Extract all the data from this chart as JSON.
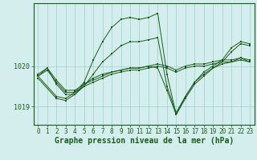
{
  "bg_color": "#d4eeed",
  "line_color": "#1a5c1a",
  "grid_color": "#9fcfcf",
  "xlabel": "Graphe pression niveau de la mer (hPa)",
  "xlabel_fontsize": 7.0,
  "tick_fontsize": 5.5,
  "ytick_fontsize": 6.0,
  "ylim": [
    1018.55,
    1021.55
  ],
  "xlim": [
    -0.5,
    23.5
  ],
  "yticks": [
    1019,
    1020
  ],
  "xticks": [
    0,
    1,
    2,
    3,
    4,
    5,
    6,
    7,
    8,
    9,
    10,
    11,
    12,
    13,
    14,
    15,
    16,
    17,
    18,
    19,
    20,
    21,
    22,
    23
  ],
  "series": [
    {
      "x": [
        0,
        1,
        2,
        3,
        4,
        5,
        6,
        7,
        8,
        9,
        10,
        11,
        12,
        13,
        14,
        15,
        16,
        17,
        18,
        19,
        20,
        21,
        22,
        23
      ],
      "y": [
        1019.75,
        1019.9,
        1019.6,
        1019.35,
        1019.35,
        1019.5,
        1019.6,
        1019.7,
        1019.8,
        1019.85,
        1019.9,
        1019.9,
        1019.95,
        1020.0,
        1019.95,
        1019.85,
        1019.95,
        1020.0,
        1020.0,
        1020.05,
        1020.1,
        1020.1,
        1020.15,
        1020.1
      ]
    },
    {
      "x": [
        0,
        1,
        2,
        3,
        4,
        5,
        6,
        7,
        8,
        9,
        10,
        11,
        12,
        13,
        14,
        15,
        16,
        17,
        18,
        19,
        20,
        21,
        22,
        23
      ],
      "y": [
        1019.8,
        1019.95,
        1019.65,
        1019.4,
        1019.4,
        1019.55,
        1019.65,
        1019.75,
        1019.85,
        1019.9,
        1019.95,
        1019.95,
        1020.0,
        1020.05,
        1020.0,
        1019.9,
        1020.0,
        1020.05,
        1020.05,
        1020.1,
        1020.15,
        1020.15,
        1020.2,
        1020.15
      ]
    },
    {
      "x": [
        0,
        1,
        2,
        3,
        4,
        5,
        6,
        7,
        8,
        9,
        10,
        11,
        12,
        13,
        14,
        15,
        16,
        17,
        18,
        19,
        20,
        21,
        22,
        23
      ],
      "y": [
        1019.75,
        1019.95,
        1019.55,
        1019.3,
        1019.3,
        1019.55,
        1019.7,
        1019.8,
        1019.85,
        1019.9,
        1019.95,
        1019.95,
        1020.0,
        1019.95,
        1019.4,
        1018.8,
        1019.2,
        1019.55,
        1019.75,
        1019.95,
        1020.05,
        1020.1,
        1020.2,
        1020.1
      ]
    },
    {
      "x": [
        0,
        2,
        3,
        4,
        5,
        6,
        7,
        8,
        9,
        10,
        11,
        12,
        13,
        14,
        15,
        16,
        17,
        18,
        19,
        20,
        21,
        22,
        23
      ],
      "y": [
        1019.75,
        1019.25,
        1019.2,
        1019.35,
        1019.6,
        1020.15,
        1020.6,
        1020.95,
        1021.15,
        1021.2,
        1021.15,
        1021.2,
        1021.3,
        1019.8,
        1018.8,
        1019.25,
        1019.6,
        1019.85,
        1020.0,
        1020.15,
        1020.45,
        1020.6,
        1020.55
      ]
    },
    {
      "x": [
        0,
        2,
        3,
        4,
        5,
        6,
        7,
        8,
        9,
        10,
        11,
        12,
        13,
        14,
        15,
        16,
        17,
        18,
        19,
        20,
        21,
        22,
        23
      ],
      "y": [
        1019.7,
        1019.2,
        1019.15,
        1019.3,
        1019.5,
        1019.8,
        1020.1,
        1020.3,
        1020.5,
        1020.6,
        1020.6,
        1020.65,
        1020.7,
        1019.5,
        1018.85,
        1019.25,
        1019.6,
        1019.8,
        1019.95,
        1020.1,
        1020.35,
        1020.55,
        1020.5
      ]
    }
  ]
}
